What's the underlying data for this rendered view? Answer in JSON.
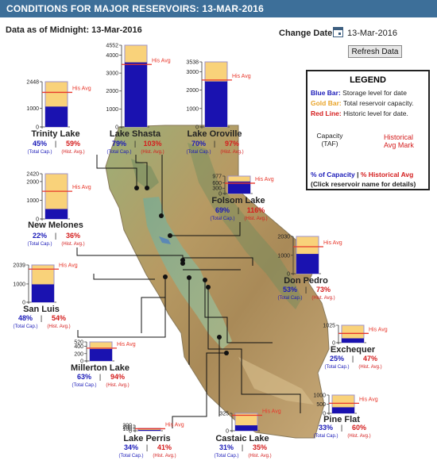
{
  "header": {
    "title": "CONDITIONS FOR MAJOR RESERVOIRS: 13-MAR-2016"
  },
  "as_of": "Data as of Midnight: 13-Mar-2016",
  "change_date": {
    "label": "Change Date:",
    "value": "13-Mar-2016"
  },
  "refresh_label": "Refresh Data",
  "legend": {
    "title": "LEGEND",
    "blue_key": "Blue Bar:",
    "blue_text": "Storage level for date",
    "gold_key": "Gold Bar:",
    "gold_text": "Total reservoir capacity.",
    "red_key": "Red Line:",
    "red_text": "Historic level for date.",
    "capacity_l1": "Capacity",
    "capacity_l2": "(TAF)",
    "hist_l1": "Historical",
    "hist_l2": "Avg Mark",
    "pct_cap": "% of Capacity",
    "sep": "|",
    "pct_hist": "% Historical Avg",
    "click": "(Click reservoir name for details)"
  },
  "colors": {
    "storage": "#1a12b0",
    "capacity": "#f9d27a",
    "hist": "#e8372b",
    "pct_cap": "#1a1ab8",
    "pct_hist": "#d41d1d"
  },
  "chart_data": {
    "type": "bar",
    "series": [
      "Storage level",
      "Total reservoir capacity",
      "Historic level"
    ],
    "reservoirs": [
      {
        "name": "Trinity Lake",
        "capacity": 2448,
        "storage": 1102,
        "hist_avg": 1870,
        "pct_cap": "45%",
        "pct_hist": "59%",
        "ticks": [
          "2448",
          "1000",
          "0"
        ],
        "ymax": 2448
      },
      {
        "name": "Lake Shasta",
        "capacity": 4552,
        "storage": 3596,
        "hist_avg": 3480,
        "pct_cap": "79%",
        "pct_hist": "103%",
        "ticks": [
          "4552",
          "4000",
          "3000",
          "2000",
          "1000",
          "0"
        ],
        "ymax": 4552
      },
      {
        "name": "Lake Oroville",
        "capacity": 3538,
        "storage": 2477,
        "hist_avg": 2550,
        "pct_cap": "70%",
        "pct_hist": "97%",
        "ticks": [
          "3538",
          "3000",
          "2000",
          "1000",
          "0"
        ],
        "ymax": 3538
      },
      {
        "name": "New Melones",
        "capacity": 2420,
        "storage": 532,
        "hist_avg": 1480,
        "pct_cap": "22%",
        "pct_hist": "36%",
        "ticks": [
          "2420",
          "2000",
          "1000",
          "0"
        ],
        "ymax": 2420
      },
      {
        "name": "Folsom Lake",
        "capacity": 977,
        "storage": 674,
        "hist_avg": 580,
        "pct_cap": "69%",
        "pct_hist": "116%",
        "ticks": [
          "977",
          "600",
          "300",
          "0"
        ],
        "ymax": 977
      },
      {
        "name": "San Luis",
        "capacity": 2039,
        "storage": 979,
        "hist_avg": 1810,
        "pct_cap": "48%",
        "pct_hist": "54%",
        "ticks": [
          "2039",
          "1000",
          "0"
        ],
        "ymax": 2039
      },
      {
        "name": "Don Pedro",
        "capacity": 2030,
        "storage": 1076,
        "hist_avg": 1470,
        "pct_cap": "53%",
        "pct_hist": "73%",
        "ticks": [
          "2030",
          "1000",
          "0"
        ],
        "ymax": 2030
      },
      {
        "name": "Millerton Lake",
        "capacity": 520,
        "storage": 328,
        "hist_avg": 350,
        "pct_cap": "63%",
        "pct_hist": "94%",
        "ticks": [
          "520",
          "400",
          "200",
          "0"
        ],
        "ymax": 520
      },
      {
        "name": "Exchequer",
        "capacity": 1025,
        "storage": 256,
        "hist_avg": 545,
        "pct_cap": "25%",
        "pct_hist": "47%",
        "ticks": [
          "1025",
          "0"
        ],
        "ymax": 1025
      },
      {
        "name": "Pine Flat",
        "capacity": 1000,
        "storage": 330,
        "hist_avg": 550,
        "pct_cap": "33%",
        "pct_hist": "60%",
        "ticks": [
          "1000",
          "500",
          "0"
        ],
        "ymax": 1000
      },
      {
        "name": "Lake Perris",
        "capacity": 131,
        "storage": 45,
        "hist_avg": 110,
        "pct_cap": "34%",
        "pct_hist": "41%",
        "ticks": [
          "300",
          "200",
          "100",
          "0"
        ],
        "ymax": 300
      },
      {
        "name": "Castaic Lake",
        "capacity": 325,
        "storage": 101,
        "hist_avg": 288,
        "pct_cap": "31%",
        "pct_hist": "35%",
        "ticks": [
          "325",
          "0"
        ],
        "ymax": 325
      }
    ],
    "hist_label": "His Avg",
    "total_cap_label": "(Total Cap.)",
    "hist_avg_label": "(Hist. Avg.)",
    "sep": "|"
  }
}
